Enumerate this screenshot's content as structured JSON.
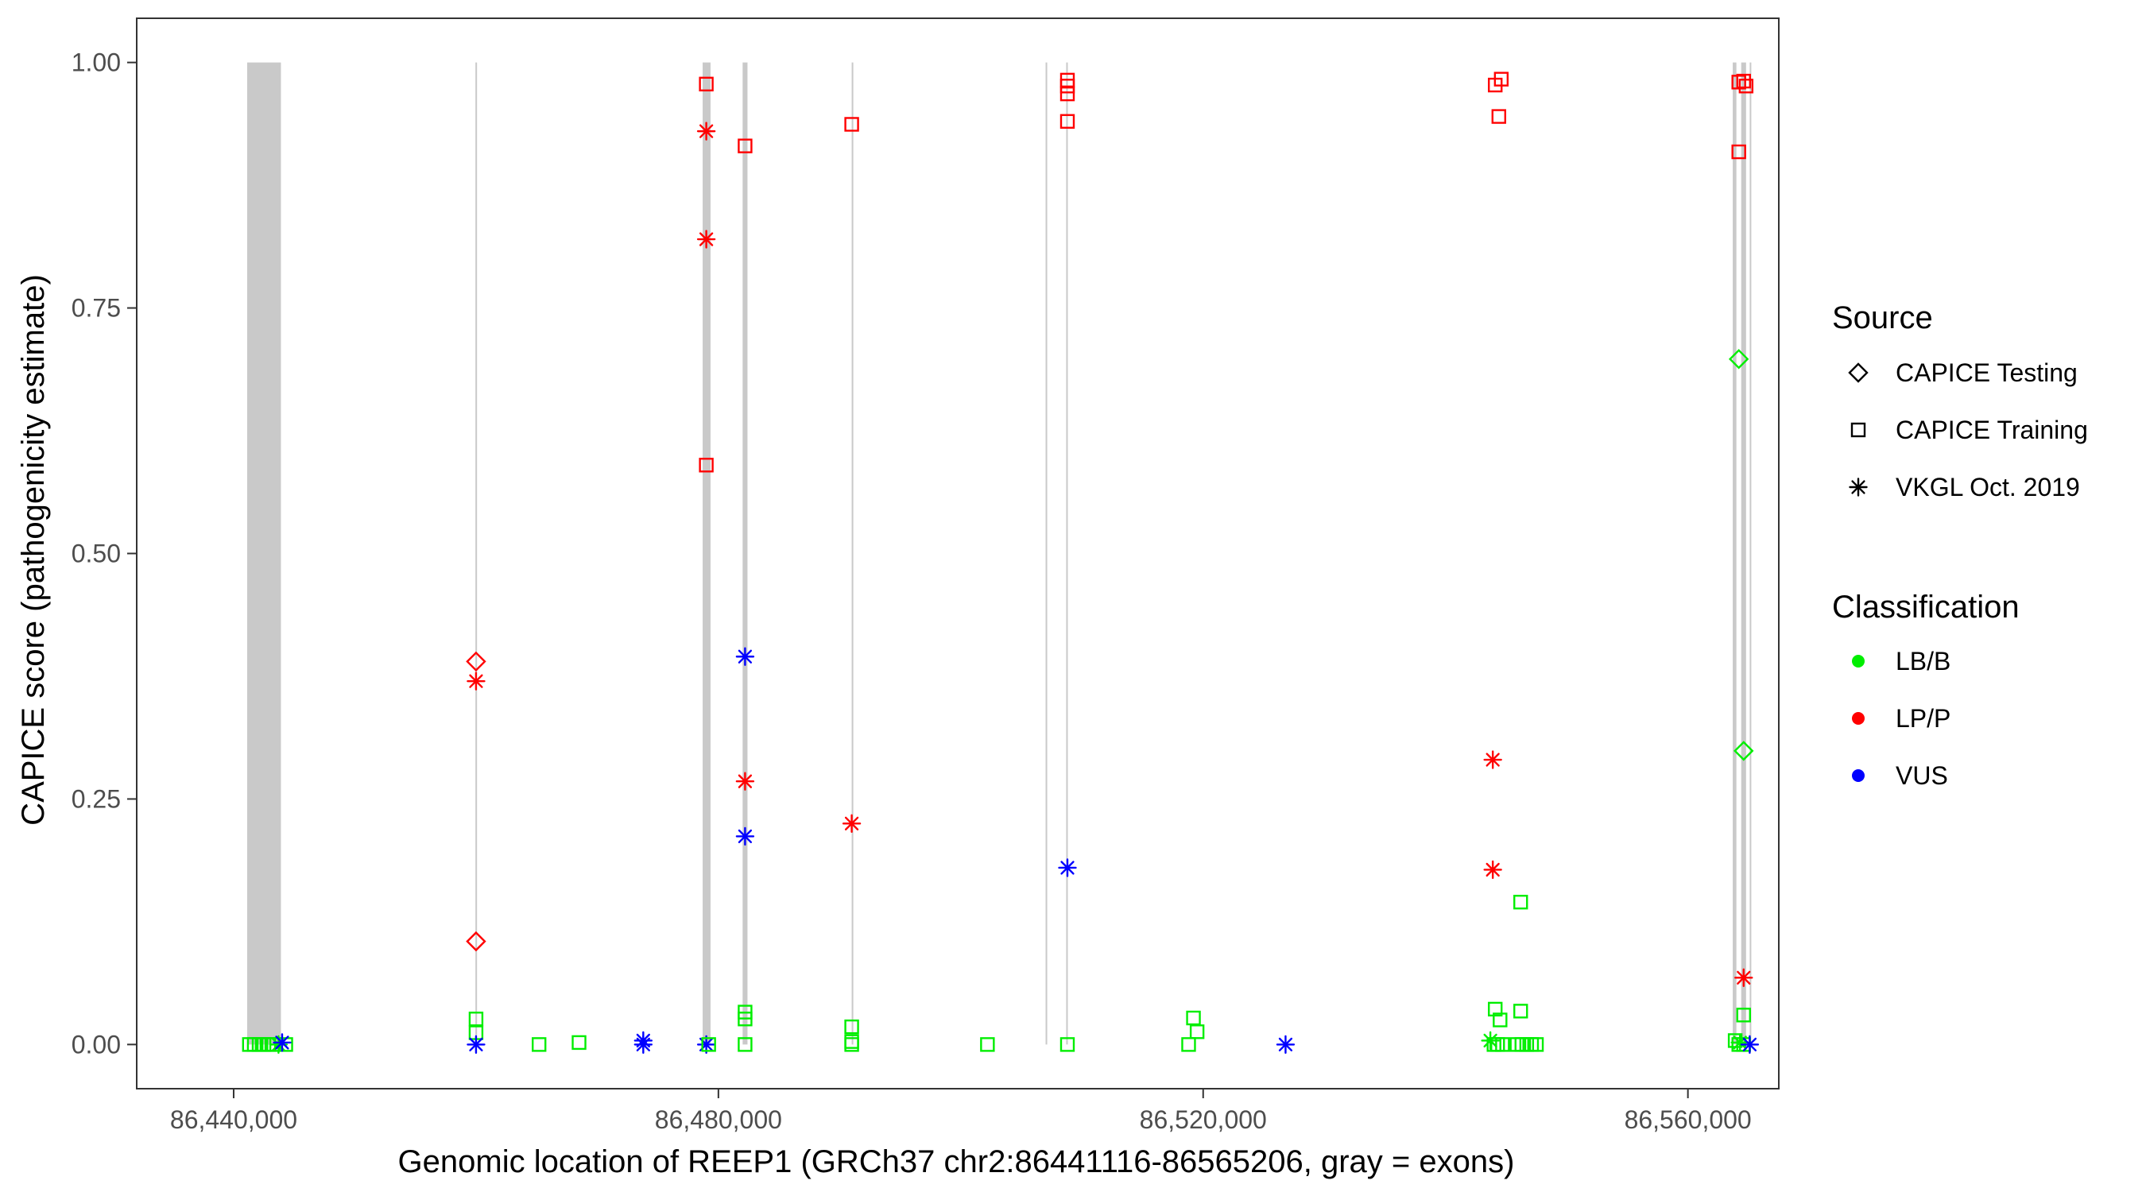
{
  "chart_data": {
    "type": "scatter",
    "xlabel": "Genomic location of REEP1 (GRCh37 chr2:86441116-86565206, gray = exons)",
    "ylabel": "CAPICE score (pathogenicity estimate)",
    "xlim": [
      86432000,
      86567500
    ],
    "ylim": [
      -0.045,
      1.045
    ],
    "xticks": [
      86440000,
      86480000,
      86520000,
      86560000
    ],
    "xtick_labels": [
      "86,440,000",
      "86,480,000",
      "86,520,000",
      "86,560,000"
    ],
    "yticks": [
      0.0,
      0.25,
      0.5,
      0.75,
      1.0
    ],
    "ytick_labels": [
      "0.00",
      "0.25",
      "0.50",
      "0.75",
      "1.00"
    ],
    "grid": false,
    "exons": [
      {
        "start": 86441116,
        "end": 86443900
      },
      {
        "start": 86459950,
        "end": 86460050
      },
      {
        "start": 86478700,
        "end": 86479350
      },
      {
        "start": 86482000,
        "end": 86482400
      },
      {
        "start": 86491000,
        "end": 86491100
      },
      {
        "start": 86507000,
        "end": 86507100
      },
      {
        "start": 86508700,
        "end": 86508800
      },
      {
        "start": 86563700,
        "end": 86564000
      },
      {
        "start": 86564400,
        "end": 86564800
      },
      {
        "start": 86565100,
        "end": 86565206
      }
    ],
    "legend": {
      "position": "right",
      "source": {
        "title": "Source",
        "items": [
          {
            "label": "CAPICE Testing",
            "shape": "diamond"
          },
          {
            "label": "CAPICE Training",
            "shape": "square"
          },
          {
            "label": "VKGL Oct. 2019",
            "shape": "asterisk"
          }
        ]
      },
      "classification": {
        "title": "Classification",
        "items": [
          {
            "label": "LB/B",
            "color": "#00ee00"
          },
          {
            "label": "LP/P",
            "color": "#ff0000"
          },
          {
            "label": "VUS",
            "color": "#0000ff"
          }
        ]
      }
    },
    "colors": {
      "LB/B": "#00ee00",
      "LP/P": "#ff0000",
      "VUS": "#0000ff"
    },
    "points": [
      {
        "x": 86441300,
        "y": 0.0,
        "source": "CAPICE Training",
        "class": "LB/B"
      },
      {
        "x": 86441700,
        "y": 0.0,
        "source": "CAPICE Training",
        "class": "LB/B"
      },
      {
        "x": 86442100,
        "y": 0.0,
        "source": "CAPICE Training",
        "class": "LB/B"
      },
      {
        "x": 86442500,
        "y": 0.0,
        "source": "CAPICE Training",
        "class": "LB/B"
      },
      {
        "x": 86442900,
        "y": 0.0,
        "source": "CAPICE Training",
        "class": "LB/B"
      },
      {
        "x": 86443300,
        "y": 0.0,
        "source": "CAPICE Training",
        "class": "LB/B"
      },
      {
        "x": 86443700,
        "y": 0.0,
        "source": "VKGL Oct. 2019",
        "class": "LB/B"
      },
      {
        "x": 86444300,
        "y": 0.0,
        "source": "CAPICE Training",
        "class": "LB/B"
      },
      {
        "x": 86444000,
        "y": 0.002,
        "source": "VKGL Oct. 2019",
        "class": "VUS"
      },
      {
        "x": 86460000,
        "y": 0.39,
        "source": "CAPICE Testing",
        "class": "LP/P"
      },
      {
        "x": 86460000,
        "y": 0.37,
        "source": "VKGL Oct. 2019",
        "class": "LP/P"
      },
      {
        "x": 86460000,
        "y": 0.105,
        "source": "CAPICE Testing",
        "class": "LP/P"
      },
      {
        "x": 86460000,
        "y": 0.026,
        "source": "CAPICE Training",
        "class": "LB/B"
      },
      {
        "x": 86460000,
        "y": 0.012,
        "source": "CAPICE Training",
        "class": "LB/B"
      },
      {
        "x": 86460000,
        "y": 0.0,
        "source": "VKGL Oct. 2019",
        "class": "VUS"
      },
      {
        "x": 86465200,
        "y": 0.0,
        "source": "CAPICE Training",
        "class": "LB/B"
      },
      {
        "x": 86468500,
        "y": 0.002,
        "source": "CAPICE Training",
        "class": "LB/B"
      },
      {
        "x": 86473800,
        "y": 0.004,
        "source": "VKGL Oct. 2019",
        "class": "VUS"
      },
      {
        "x": 86473800,
        "y": 0.0,
        "source": "VKGL Oct. 2019",
        "class": "VUS"
      },
      {
        "x": 86479000,
        "y": 0.978,
        "source": "CAPICE Training",
        "class": "LP/P"
      },
      {
        "x": 86479000,
        "y": 0.93,
        "source": "VKGL Oct. 2019",
        "class": "LP/P"
      },
      {
        "x": 86479000,
        "y": 0.82,
        "source": "VKGL Oct. 2019",
        "class": "LP/P"
      },
      {
        "x": 86479000,
        "y": 0.59,
        "source": "CAPICE Training",
        "class": "LP/P"
      },
      {
        "x": 86479000,
        "y": 0.0,
        "source": "VKGL Oct. 2019",
        "class": "VUS"
      },
      {
        "x": 86479200,
        "y": 0.0,
        "source": "CAPICE Training",
        "class": "LB/B"
      },
      {
        "x": 86482200,
        "y": 0.915,
        "source": "CAPICE Training",
        "class": "LP/P"
      },
      {
        "x": 86482200,
        "y": 0.395,
        "source": "VKGL Oct. 2019",
        "class": "VUS"
      },
      {
        "x": 86482200,
        "y": 0.268,
        "source": "VKGL Oct. 2019",
        "class": "LP/P"
      },
      {
        "x": 86482200,
        "y": 0.212,
        "source": "VKGL Oct. 2019",
        "class": "VUS"
      },
      {
        "x": 86482200,
        "y": 0.033,
        "source": "CAPICE Training",
        "class": "LB/B"
      },
      {
        "x": 86482200,
        "y": 0.026,
        "source": "CAPICE Training",
        "class": "LB/B"
      },
      {
        "x": 86482200,
        "y": 0.0,
        "source": "CAPICE Training",
        "class": "LB/B"
      },
      {
        "x": 86491000,
        "y": 0.937,
        "source": "CAPICE Training",
        "class": "LP/P"
      },
      {
        "x": 86491000,
        "y": 0.225,
        "source": "VKGL Oct. 2019",
        "class": "LP/P"
      },
      {
        "x": 86491000,
        "y": 0.018,
        "source": "CAPICE Training",
        "class": "LB/B"
      },
      {
        "x": 86491000,
        "y": 0.003,
        "source": "CAPICE Training",
        "class": "LB/B"
      },
      {
        "x": 86491000,
        "y": 0.0,
        "source": "CAPICE Training",
        "class": "LB/B"
      },
      {
        "x": 86502200,
        "y": 0.0,
        "source": "CAPICE Training",
        "class": "LB/B"
      },
      {
        "x": 86508800,
        "y": 0.982,
        "source": "CAPICE Training",
        "class": "LP/P"
      },
      {
        "x": 86508800,
        "y": 0.976,
        "source": "CAPICE Training",
        "class": "LP/P"
      },
      {
        "x": 86508800,
        "y": 0.968,
        "source": "CAPICE Training",
        "class": "LP/P"
      },
      {
        "x": 86508800,
        "y": 0.94,
        "source": "CAPICE Training",
        "class": "LP/P"
      },
      {
        "x": 86508800,
        "y": 0.18,
        "source": "VKGL Oct. 2019",
        "class": "VUS"
      },
      {
        "x": 86508800,
        "y": 0.0,
        "source": "CAPICE Training",
        "class": "LB/B"
      },
      {
        "x": 86518800,
        "y": 0.0,
        "source": "CAPICE Training",
        "class": "LB/B"
      },
      {
        "x": 86519200,
        "y": 0.027,
        "source": "CAPICE Training",
        "class": "LB/B"
      },
      {
        "x": 86519500,
        "y": 0.013,
        "source": "CAPICE Training",
        "class": "LB/B"
      },
      {
        "x": 86526800,
        "y": 0.0,
        "source": "VKGL Oct. 2019",
        "class": "VUS"
      },
      {
        "x": 86544100,
        "y": 0.977,
        "source": "CAPICE Training",
        "class": "LP/P"
      },
      {
        "x": 86544600,
        "y": 0.983,
        "source": "CAPICE Training",
        "class": "LP/P"
      },
      {
        "x": 86544400,
        "y": 0.945,
        "source": "CAPICE Training",
        "class": "LP/P"
      },
      {
        "x": 86543900,
        "y": 0.29,
        "source": "VKGL Oct. 2019",
        "class": "LP/P"
      },
      {
        "x": 86543900,
        "y": 0.178,
        "source": "VKGL Oct. 2019",
        "class": "LP/P"
      },
      {
        "x": 86546200,
        "y": 0.145,
        "source": "CAPICE Training",
        "class": "LB/B"
      },
      {
        "x": 86544100,
        "y": 0.036,
        "source": "CAPICE Training",
        "class": "LB/B"
      },
      {
        "x": 86546200,
        "y": 0.034,
        "source": "CAPICE Training",
        "class": "LB/B"
      },
      {
        "x": 86544500,
        "y": 0.025,
        "source": "CAPICE Training",
        "class": "LB/B"
      },
      {
        "x": 86543700,
        "y": 0.004,
        "source": "VKGL Oct. 2019",
        "class": "LB/B"
      },
      {
        "x": 86544000,
        "y": 0.0,
        "source": "CAPICE Training",
        "class": "LB/B"
      },
      {
        "x": 86544300,
        "y": 0.0,
        "source": "CAPICE Training",
        "class": "LB/B"
      },
      {
        "x": 86544700,
        "y": 0.0,
        "source": "CAPICE Training",
        "class": "LB/B"
      },
      {
        "x": 86545900,
        "y": 0.0,
        "source": "CAPICE Training",
        "class": "LB/B"
      },
      {
        "x": 86546300,
        "y": 0.0,
        "source": "CAPICE Training",
        "class": "LB/B"
      },
      {
        "x": 86546700,
        "y": 0.0,
        "source": "CAPICE Training",
        "class": "LB/B"
      },
      {
        "x": 86547100,
        "y": 0.0,
        "source": "CAPICE Training",
        "class": "LB/B"
      },
      {
        "x": 86547500,
        "y": 0.0,
        "source": "CAPICE Training",
        "class": "LB/B"
      },
      {
        "x": 86564200,
        "y": 0.98,
        "source": "CAPICE Training",
        "class": "LP/P"
      },
      {
        "x": 86564600,
        "y": 0.981,
        "source": "CAPICE Training",
        "class": "LP/P"
      },
      {
        "x": 86564800,
        "y": 0.976,
        "source": "CAPICE Training",
        "class": "LP/P"
      },
      {
        "x": 86564200,
        "y": 0.909,
        "source": "CAPICE Training",
        "class": "LP/P"
      },
      {
        "x": 86564200,
        "y": 0.698,
        "source": "CAPICE Testing",
        "class": "LB/B"
      },
      {
        "x": 86564600,
        "y": 0.299,
        "source": "CAPICE Testing",
        "class": "LB/B"
      },
      {
        "x": 86564600,
        "y": 0.068,
        "source": "VKGL Oct. 2019",
        "class": "LP/P"
      },
      {
        "x": 86564600,
        "y": 0.03,
        "source": "CAPICE Training",
        "class": "LB/B"
      },
      {
        "x": 86563900,
        "y": 0.004,
        "source": "CAPICE Training",
        "class": "LB/B"
      },
      {
        "x": 86564200,
        "y": 0.0,
        "source": "CAPICE Training",
        "class": "LB/B"
      },
      {
        "x": 86564600,
        "y": 0.0,
        "source": "CAPICE Training",
        "class": "LB/B"
      },
      {
        "x": 86564300,
        "y": 0.002,
        "source": "VKGL Oct. 2019",
        "class": "LB/B"
      },
      {
        "x": 86565100,
        "y": 0.0,
        "source": "VKGL Oct. 2019",
        "class": "VUS"
      }
    ]
  }
}
